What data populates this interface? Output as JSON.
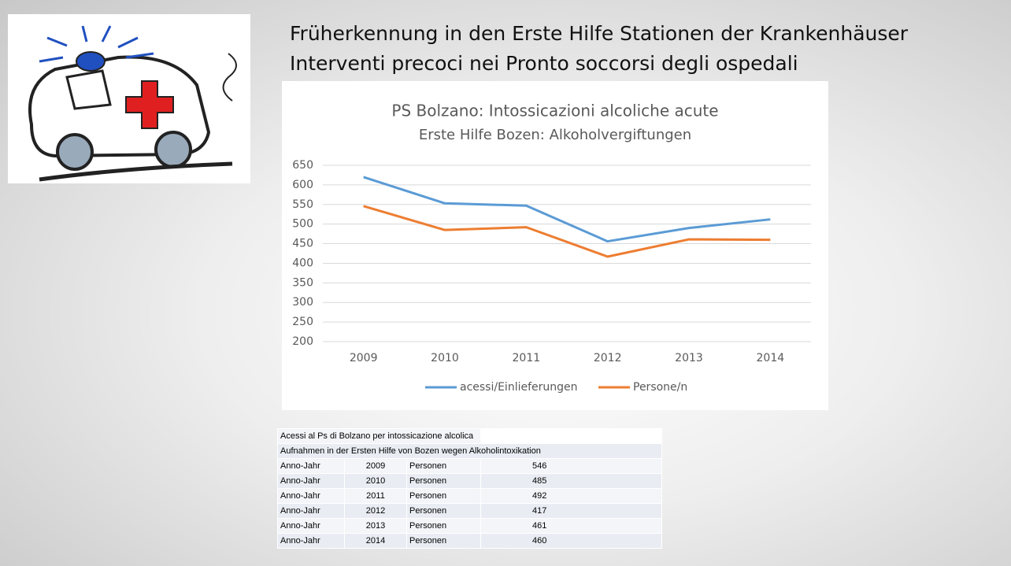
{
  "slide": {
    "title_lines": [
      "Früherkennung in den Erste Hilfe Stationen der Krankenhäuser",
      "Interventi precoci nei Pronto soccorsi degli ospedali"
    ]
  },
  "chart_data": {
    "type": "line",
    "title": "PS Bolzano: Intossicazioni alcoliche acute",
    "subtitle": "Erste Hilfe Bozen: Alkoholvergiftungen",
    "categories": [
      "2009",
      "2010",
      "2011",
      "2012",
      "2013",
      "2014"
    ],
    "series": [
      {
        "name": "acessi/Einlieferungen",
        "color": "#5b9bd5",
        "values": [
          620,
          553,
          547,
          456,
          490,
          512
        ]
      },
      {
        "name": "Persone/n",
        "color": "#ed7d31",
        "values": [
          546,
          485,
          492,
          417,
          461,
          460
        ]
      }
    ],
    "ylim": [
      200,
      650
    ],
    "yticks": [
      200,
      250,
      300,
      350,
      400,
      450,
      500,
      550,
      600,
      650
    ],
    "grid": true,
    "legend": "bottom"
  },
  "table": {
    "caption_rows": [
      "Acessi al Ps di Bolzano per intossicazione alcolica",
      "Aufnahmen in der Ersten Hilfe von Bozen wegen Alkoholintoxikation"
    ],
    "rows": [
      [
        "Anno-Jahr",
        "2009",
        "Personen",
        "546"
      ],
      [
        "Anno-Jahr",
        "2010",
        "Personen",
        "485"
      ],
      [
        "Anno-Jahr",
        "2011",
        "Personen",
        "492"
      ],
      [
        "Anno-Jahr",
        "2012",
        "Personen",
        "417"
      ],
      [
        "Anno-Jahr",
        "2013",
        "Personen",
        "461"
      ],
      [
        "Anno-Jahr",
        "2014",
        "Personen",
        "460"
      ]
    ]
  }
}
